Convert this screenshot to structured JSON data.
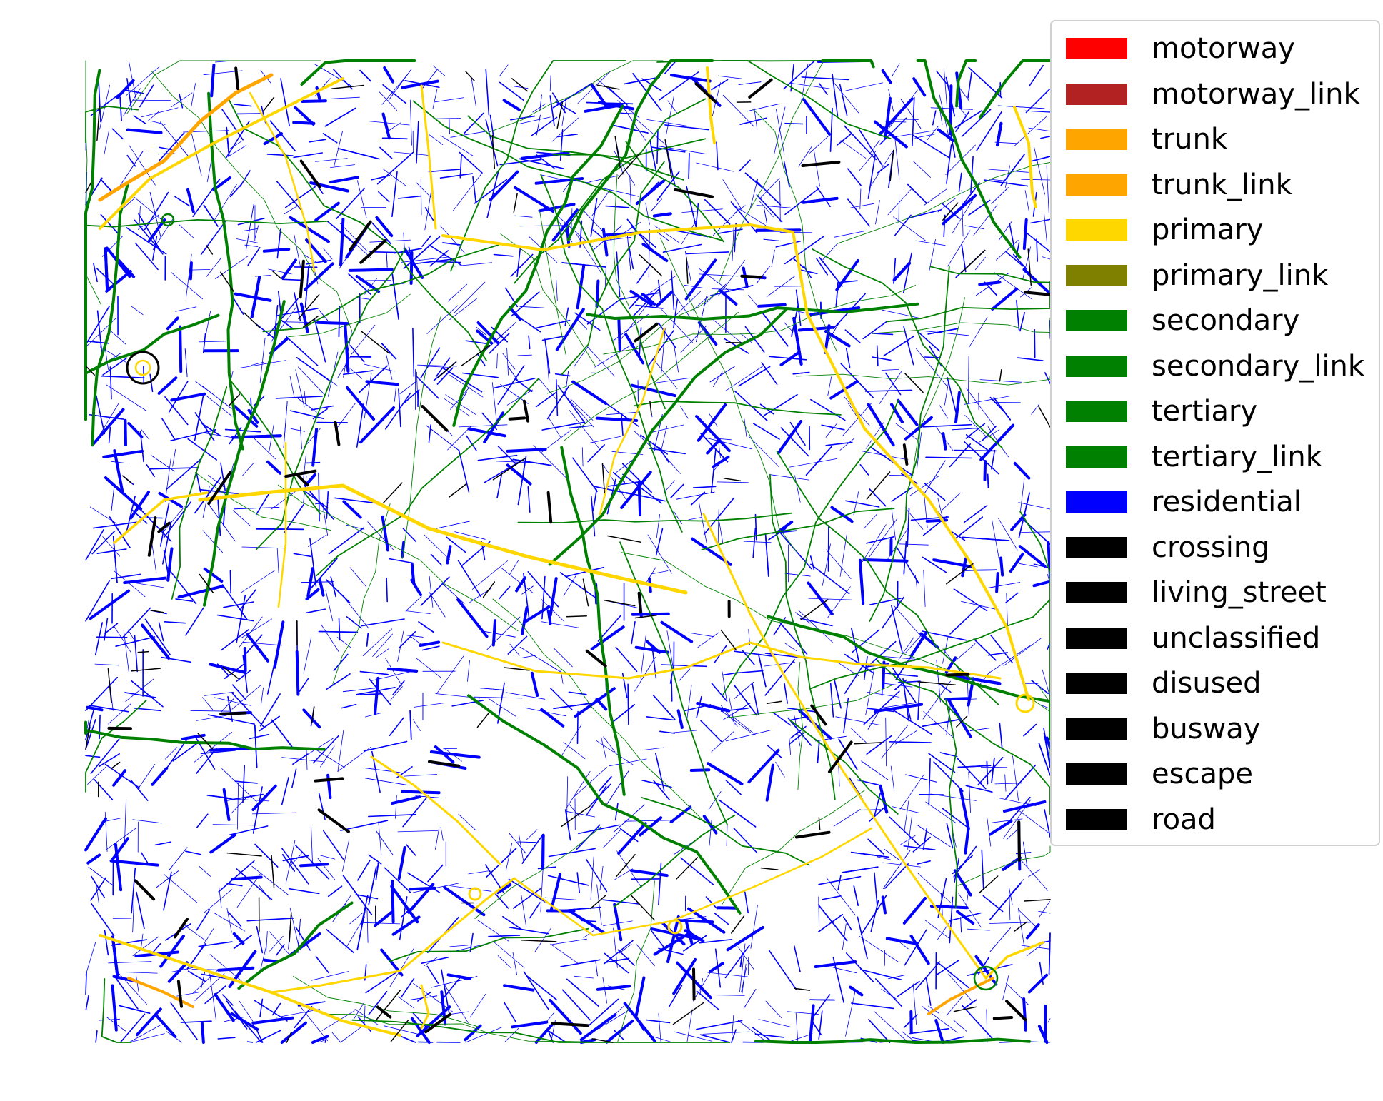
{
  "map": {
    "type": "road network",
    "layers_order": [
      "residential",
      "tertiary",
      "secondary",
      "primary",
      "trunk",
      "crossing"
    ]
  },
  "legend": {
    "items": [
      {
        "label": "motorway",
        "color": "#ff0000"
      },
      {
        "label": "motorway_link",
        "color": "#b22222"
      },
      {
        "label": "trunk",
        "color": "#ffa500"
      },
      {
        "label": "trunk_link",
        "color": "#ffa500"
      },
      {
        "label": "primary",
        "color": "#ffd700"
      },
      {
        "label": "primary_link",
        "color": "#808000"
      },
      {
        "label": "secondary",
        "color": "#008000"
      },
      {
        "label": "secondary_link",
        "color": "#008000"
      },
      {
        "label": "tertiary",
        "color": "#008000"
      },
      {
        "label": "tertiary_link",
        "color": "#008000"
      },
      {
        "label": "residential",
        "color": "#0000ff"
      },
      {
        "label": "crossing",
        "color": "#000000"
      },
      {
        "label": "living_street",
        "color": "#000000"
      },
      {
        "label": "unclassified",
        "color": "#000000"
      },
      {
        "label": "disused",
        "color": "#000000"
      },
      {
        "label": "busway",
        "color": "#000000"
      },
      {
        "label": "escape",
        "color": "#000000"
      },
      {
        "label": "road",
        "color": "#000000"
      }
    ]
  }
}
